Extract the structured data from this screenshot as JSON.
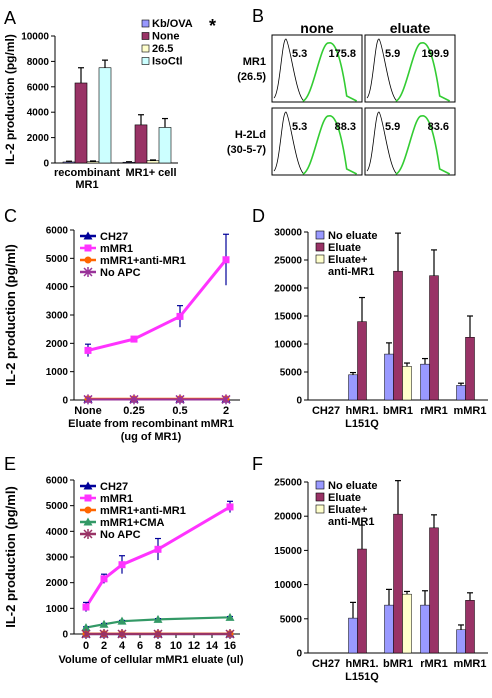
{
  "panel_letters": {
    "A": "A",
    "B": "B",
    "C": "C",
    "D": "D",
    "E": "E",
    "F": "F"
  },
  "chart_data": [
    {
      "id": "A",
      "type": "bar",
      "ylabel": "IL-2 production (pg/ml)",
      "ylim": [
        0,
        10000
      ],
      "yticks": [
        "0",
        "2000",
        "4000",
        "6000",
        "8000",
        "10000"
      ],
      "categories": [
        "recombinant MR1",
        "MR1+ cell"
      ],
      "legend_position": "top-right",
      "series": [
        {
          "name": "Kb/OVA",
          "color": "#9999ff",
          "values": [
            80,
            60
          ],
          "errors": [
            60,
            40
          ]
        },
        {
          "name": "None",
          "color": "#993366",
          "values": [
            6300,
            3000
          ],
          "errors": [
            1200,
            800
          ]
        },
        {
          "name": "26.5",
          "color": "#ffffcc",
          "values": [
            100,
            180
          ],
          "errors": [
            60,
            60
          ]
        },
        {
          "name": "IsoCtl",
          "color": "#ccffff",
          "values": [
            7500,
            2800
          ],
          "errors": [
            600,
            700
          ]
        }
      ],
      "annotation": "*"
    },
    {
      "id": "B",
      "type": "histogram_grid",
      "columns": [
        "none",
        "eluate"
      ],
      "rows": [
        "MR1\n(26.5)",
        "H-2Ld\n(30-5-7)"
      ],
      "row_label_lines": [
        [
          "MR1",
          "(26.5)"
        ],
        [
          "H-2Ld",
          "(30-5-7)"
        ]
      ],
      "cells": [
        [
          {
            "left": "5.3",
            "right": "175.8"
          },
          {
            "left": "5.9",
            "right": "199.9"
          }
        ],
        [
          {
            "left": "5.3",
            "right": "88.3"
          },
          {
            "left": "5.9",
            "right": "83.6"
          }
        ]
      ],
      "colors": {
        "control": "#000000",
        "stain": "#33cc33"
      }
    },
    {
      "id": "C",
      "type": "line",
      "ylabel": "IL-2 production (pg/ml)",
      "xlabel": "Eluate from recombinant mMR1",
      "xlabel2": "(ug of MR1)",
      "categories": [
        "None",
        "0.25",
        "0.5",
        "2"
      ],
      "ylim": [
        0,
        6000
      ],
      "yticks": [
        "0",
        "1000",
        "2000",
        "3000",
        "4000",
        "5000",
        "6000"
      ],
      "legend_position": "top-left",
      "series": [
        {
          "name": "CH27",
          "color": "#000099",
          "marker": "triangle",
          "values": [
            30,
            30,
            30,
            30
          ],
          "errors": [
            0,
            0,
            0,
            0
          ]
        },
        {
          "name": "mMR1",
          "color": "#ff33ff",
          "marker": "square",
          "values": [
            1750,
            2150,
            2950,
            4950
          ],
          "errors": [
            220,
            60,
            380,
            900
          ]
        },
        {
          "name": "mMR1+anti-MR1",
          "color": "#ff6600",
          "marker": "circle",
          "values": [
            40,
            40,
            40,
            40
          ],
          "errors": [
            0,
            0,
            0,
            0
          ]
        },
        {
          "name": "No APC",
          "color": "#993399",
          "marker": "star",
          "values": [
            20,
            20,
            20,
            20
          ],
          "errors": [
            0,
            0,
            0,
            0
          ]
        }
      ]
    },
    {
      "id": "D",
      "type": "bar",
      "categories": [
        "CH27",
        "hMR1.\nL151Q",
        "bMR1",
        "rMR1",
        "mMR1"
      ],
      "category_lines": [
        [
          "CH27"
        ],
        [
          "hMR1.",
          "L151Q"
        ],
        [
          "bMR1"
        ],
        [
          "rMR1"
        ],
        [
          "mMR1"
        ]
      ],
      "ylim": [
        0,
        30000
      ],
      "yticks": [
        "0",
        "5000",
        "10000",
        "15000",
        "20000",
        "25000",
        "30000"
      ],
      "legend_position": "top-left",
      "legend_lines": [
        [
          "No eluate"
        ],
        [
          "Eluate"
        ],
        [
          "Eluate+",
          "anti-MR1"
        ]
      ],
      "series": [
        {
          "name": "No eluate",
          "color": "#9999ff",
          "values": [
            0,
            4500,
            8200,
            6400,
            2600
          ],
          "errors": [
            0,
            400,
            2000,
            1000,
            400
          ]
        },
        {
          "name": "Eluate",
          "color": "#993366",
          "values": [
            0,
            14000,
            23000,
            22200,
            11200
          ],
          "errors": [
            0,
            4300,
            6800,
            4600,
            3800
          ]
        },
        {
          "name": "Eluate+ anti-MR1",
          "color": "#ffffcc",
          "values": [
            0,
            0,
            6000,
            0,
            0
          ],
          "errors": [
            0,
            0,
            600,
            0,
            0
          ]
        }
      ]
    },
    {
      "id": "E",
      "type": "line",
      "ylabel": "IL-2 production (pg/ml)",
      "xlabel": "Volume of cellular mMR1 eluate (ul)",
      "x": [
        0,
        2,
        4,
        8,
        16
      ],
      "xticks": [
        "0",
        "2",
        "4",
        "6",
        "8",
        "10",
        "12",
        "14",
        "16"
      ],
      "ylim": [
        0,
        6000
      ],
      "yticks": [
        "0",
        "1000",
        "2000",
        "3000",
        "4000",
        "5000",
        "6000"
      ],
      "legend_position": "top-left",
      "series": [
        {
          "name": "CH27",
          "color": "#000099",
          "marker": "triangle",
          "values": [
            0,
            0,
            0,
            0,
            0
          ],
          "errors": [
            0,
            0,
            0,
            0,
            0
          ]
        },
        {
          "name": "mMR1",
          "color": "#ff33ff",
          "marker": "square",
          "values": [
            1050,
            2150,
            2700,
            3300,
            4950
          ],
          "errors": [
            180,
            180,
            350,
            420,
            220
          ]
        },
        {
          "name": "mMR1+anti-MR1",
          "color": "#ff6600",
          "marker": "circle",
          "values": [
            10,
            10,
            10,
            10,
            10
          ],
          "errors": [
            0,
            0,
            0,
            0,
            0
          ]
        },
        {
          "name": "mMR1+CMA",
          "color": "#339966",
          "marker": "triangle",
          "values": [
            250,
            380,
            500,
            570,
            650
          ],
          "errors": [
            30,
            30,
            30,
            30,
            30
          ]
        },
        {
          "name": "No APC",
          "color": "#993366",
          "marker": "star",
          "values": [
            0,
            0,
            0,
            0,
            0
          ],
          "errors": [
            0,
            0,
            0,
            0,
            0
          ]
        }
      ]
    },
    {
      "id": "F",
      "type": "bar",
      "categories": [
        "CH27",
        "hMR1.\nL151Q",
        "bMR1",
        "rMR1",
        "mMR1"
      ],
      "category_lines": [
        [
          "CH27"
        ],
        [
          "hMR1.",
          "L151Q"
        ],
        [
          "bMR1"
        ],
        [
          "rMR1"
        ],
        [
          "mMR1"
        ]
      ],
      "ylim": [
        0,
        25000
      ],
      "yticks": [
        "0",
        "5000",
        "10000",
        "15000",
        "20000",
        "25000"
      ],
      "legend_position": "top-left",
      "legend_lines": [
        [
          "No eluate"
        ],
        [
          "Eluate"
        ],
        [
          "Eluate+",
          "anti-MR1"
        ]
      ],
      "series": [
        {
          "name": "No eluate",
          "color": "#9999ff",
          "values": [
            0,
            5100,
            7000,
            7000,
            3400
          ],
          "errors": [
            0,
            2300,
            2300,
            2100,
            700
          ]
        },
        {
          "name": "Eluate",
          "color": "#993366",
          "values": [
            0,
            15200,
            20300,
            18300,
            7700
          ],
          "errors": [
            0,
            3500,
            4900,
            1900,
            1100
          ]
        },
        {
          "name": "Eluate+ anti-MR1",
          "color": "#ffffcc",
          "values": [
            0,
            0,
            8600,
            0,
            0
          ],
          "errors": [
            0,
            0,
            400,
            0,
            0
          ]
        }
      ]
    }
  ]
}
